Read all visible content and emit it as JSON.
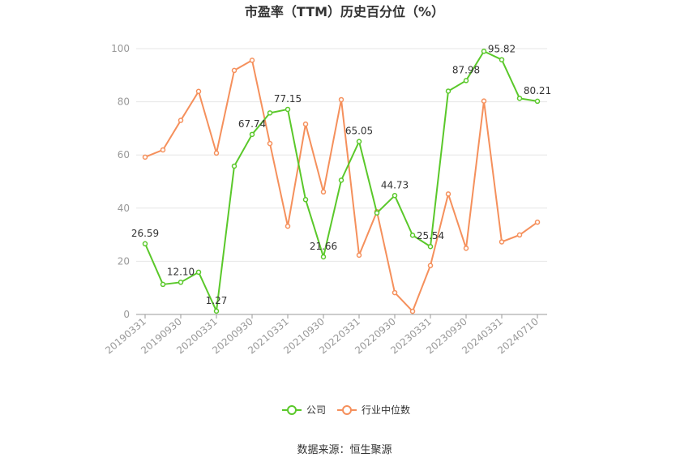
{
  "chart_data": {
    "type": "line",
    "title": "市盈率（TTM）历史百分位（%）",
    "xlabel": "",
    "ylabel": "",
    "ylim": [
      0,
      100
    ],
    "yticks": [
      0,
      20,
      40,
      60,
      80,
      100
    ],
    "grid": true,
    "legend_position": "bottom",
    "x": [
      "20190331",
      "20190630",
      "20190930",
      "20191231",
      "20200331",
      "20200630",
      "20200930",
      "20201231",
      "20210331",
      "20210630",
      "20210930",
      "20211231",
      "20220331",
      "20220630",
      "20220930",
      "20221231",
      "20230331",
      "20230630",
      "20230930",
      "20231231",
      "20240331",
      "20240630",
      "20240710"
    ],
    "xtick_labels": [
      "20190331",
      "20190930",
      "20200331",
      "20200930",
      "20210331",
      "20210930",
      "20220331",
      "20220930",
      "20230331",
      "20230930",
      "20240331",
      "20240710"
    ],
    "series": [
      {
        "name": "公司",
        "color": "#5ac82a",
        "values": [
          26.59,
          11.3,
          12.1,
          15.9,
          1.27,
          55.8,
          67.74,
          75.8,
          77.15,
          43.2,
          21.66,
          50.5,
          65.05,
          38.2,
          44.73,
          29.8,
          25.54,
          84.0,
          87.98,
          99.0,
          95.82,
          81.3,
          80.21
        ],
        "labels": [
          "26.59",
          "",
          "12.10",
          "",
          "1.27",
          "",
          "67.74",
          "",
          "77.15",
          "",
          "21.66",
          "",
          "65.05",
          "",
          "44.73",
          "",
          "25.54",
          "",
          "87.98",
          "",
          "95.82",
          "",
          "80.21"
        ]
      },
      {
        "name": "行业中位数",
        "color": "#f5905c",
        "values": [
          59.2,
          61.9,
          73.0,
          83.9,
          60.7,
          91.8,
          95.6,
          64.3,
          33.2,
          71.6,
          46.1,
          80.8,
          22.3,
          38.7,
          8.2,
          1.2,
          18.4,
          45.3,
          24.9,
          80.3,
          27.3,
          29.9,
          34.7
        ]
      }
    ]
  },
  "source_text": "数据来源：恒生聚源"
}
